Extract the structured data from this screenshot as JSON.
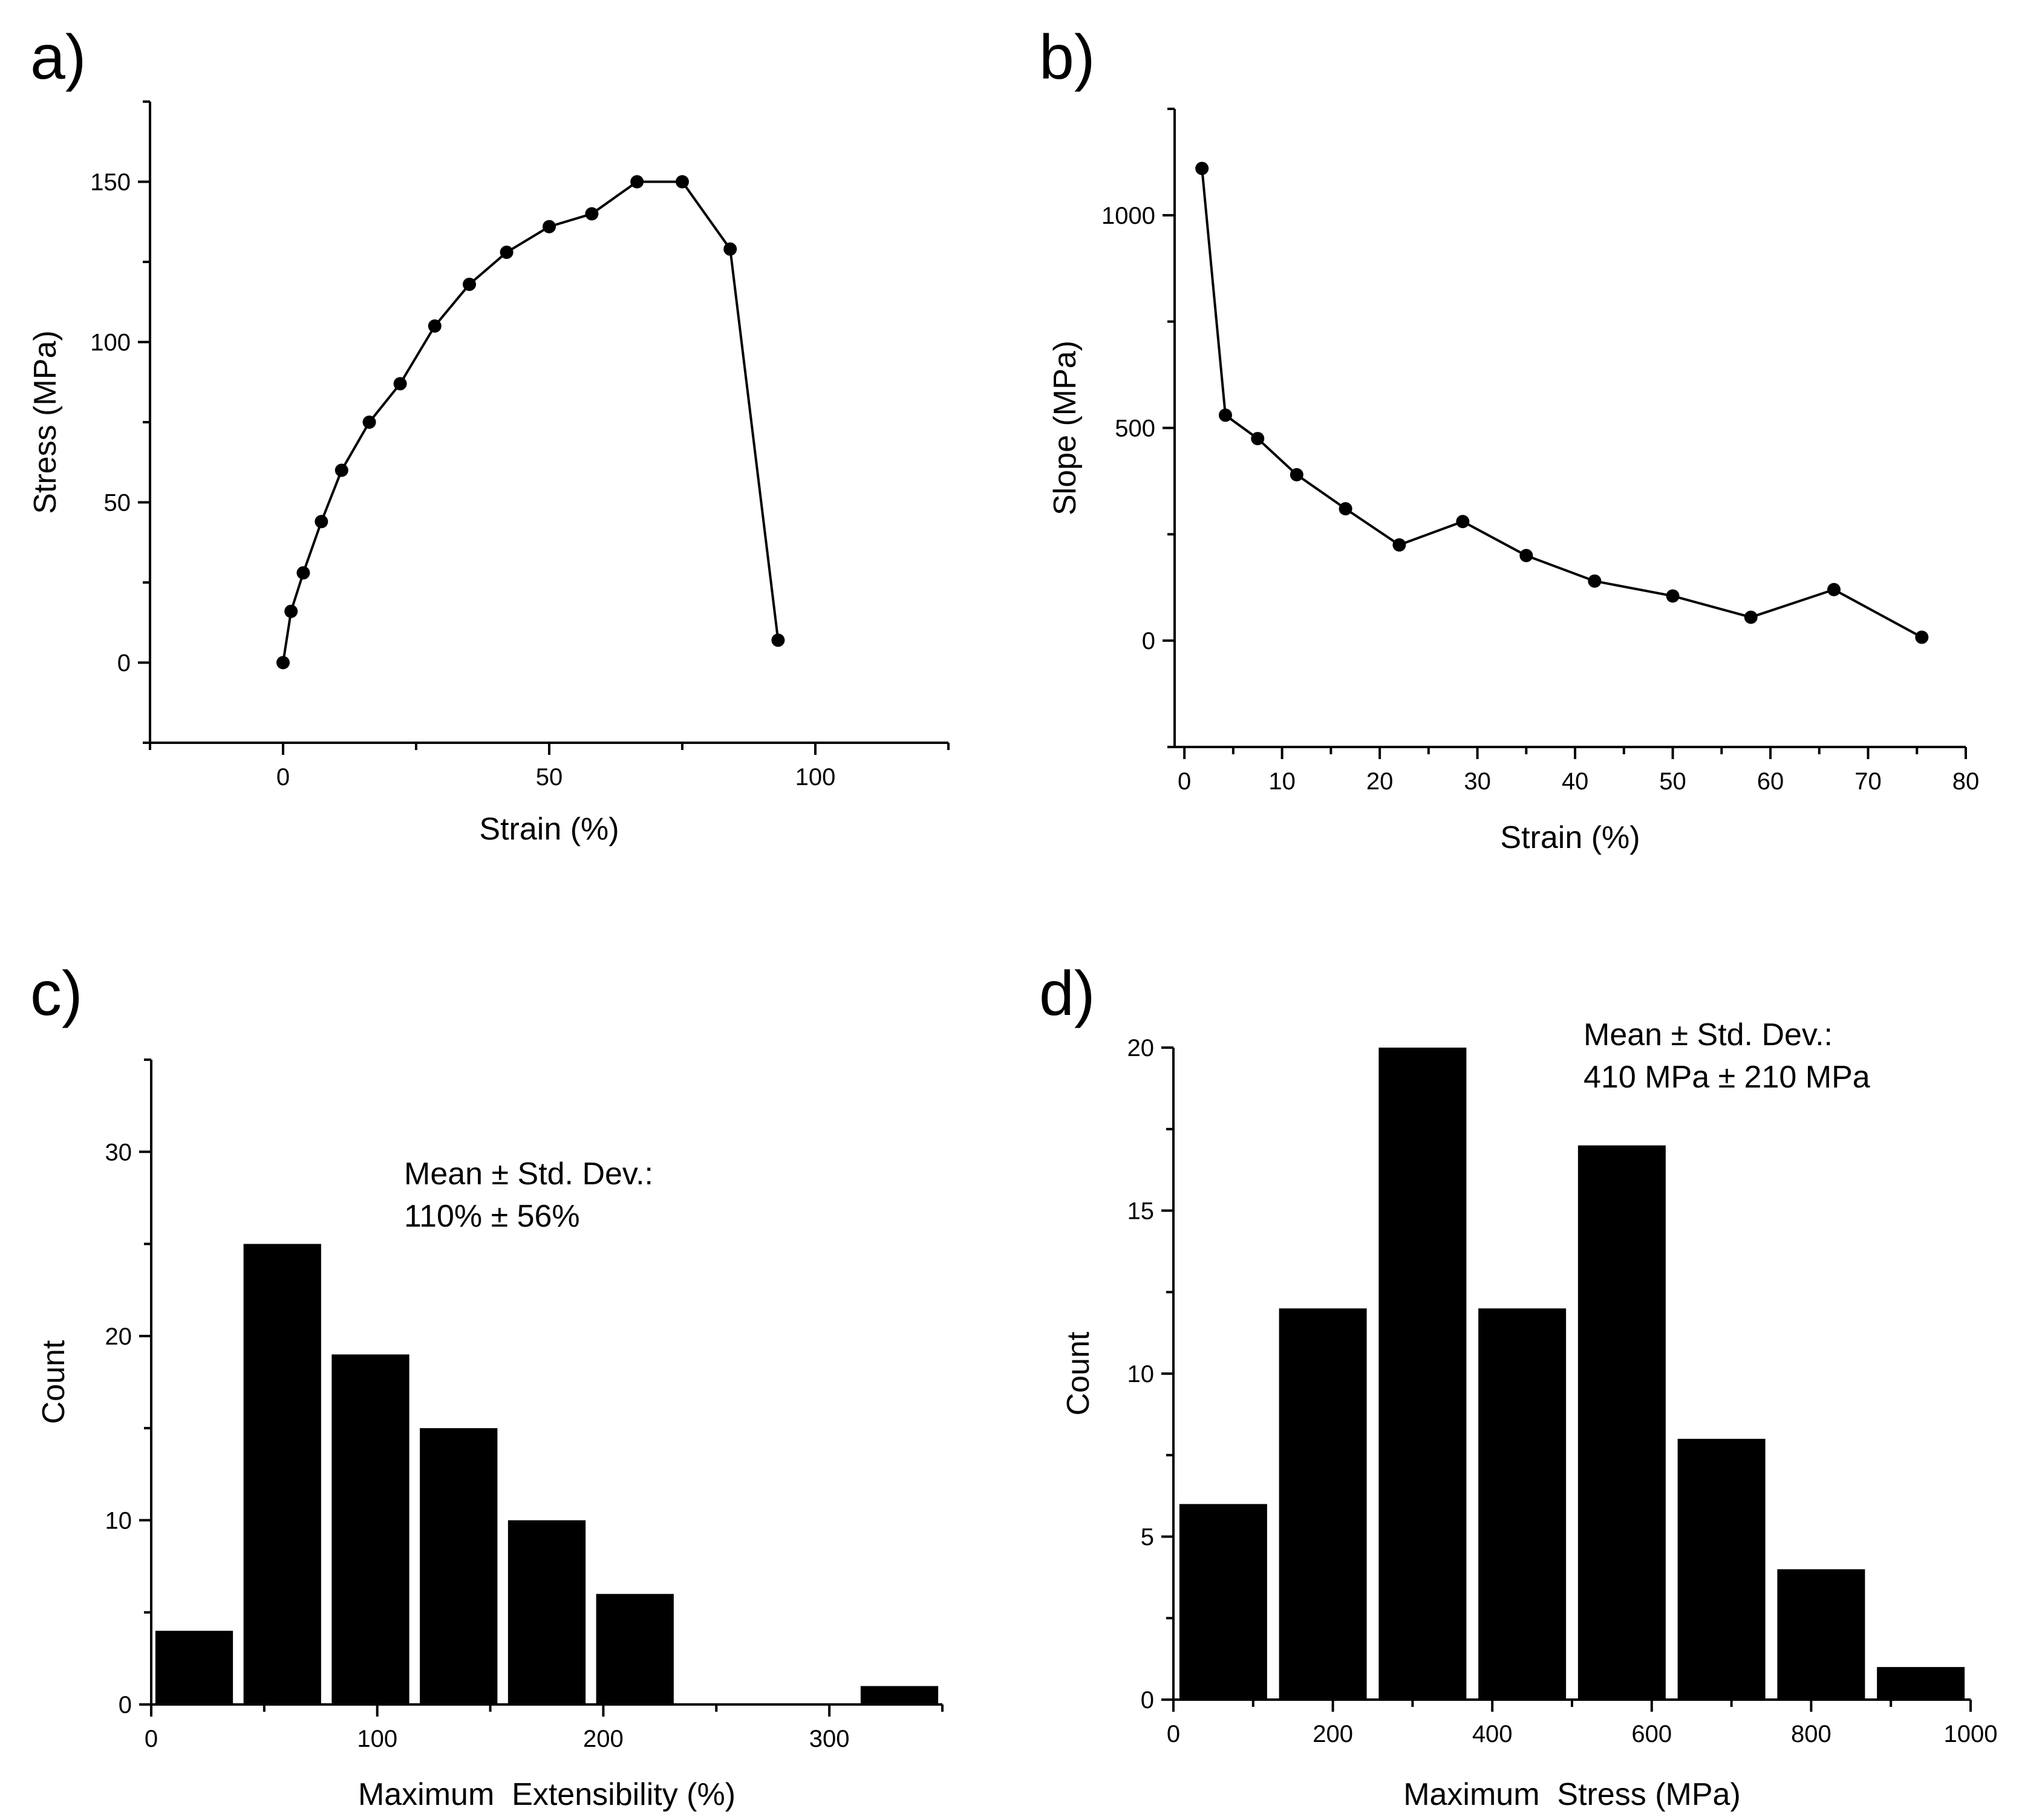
{
  "chart_data": [
    {
      "panel_label": "a)",
      "type": "line",
      "xlabel": "Strain (%)",
      "ylabel": "Stress (MPa)",
      "xlim": [
        -25,
        125
      ],
      "ylim": [
        -25,
        175
      ],
      "xticks": [
        0,
        50,
        100
      ],
      "yticks": [
        0,
        50,
        100,
        150
      ],
      "grid": false,
      "x": [
        0,
        1.5,
        3.8,
        7.2,
        11,
        16.2,
        22,
        28.5,
        35,
        42,
        50,
        58,
        66.5,
        75,
        84,
        93
      ],
      "y": [
        0,
        16,
        28,
        44,
        60,
        75,
        87,
        105,
        118,
        128,
        136,
        140,
        150,
        150,
        129,
        7
      ]
    },
    {
      "panel_label": "b)",
      "type": "line",
      "xlabel": "Strain (%)",
      "ylabel": "Slope (MPa)",
      "xlim": [
        -1,
        80
      ],
      "ylim": [
        -250,
        1250
      ],
      "xticks": [
        0,
        10,
        20,
        30,
        40,
        50,
        60,
        70,
        80
      ],
      "yticks": [
        0,
        500,
        1000
      ],
      "grid": false,
      "x": [
        1.8,
        4.2,
        7.5,
        11.5,
        16.5,
        22,
        28.5,
        35,
        42,
        50,
        58,
        66.5,
        75.5
      ],
      "y": [
        1110,
        530,
        475,
        390,
        310,
        225,
        280,
        200,
        140,
        105,
        55,
        120,
        8
      ]
    },
    {
      "panel_label": "c)",
      "type": "bar",
      "xlabel": "Maximum  Extensibility (%)",
      "ylabel": "Count",
      "xlim": [
        0,
        350
      ],
      "ylim": [
        0,
        35
      ],
      "xticks": [
        0,
        100,
        200,
        300
      ],
      "yticks": [
        0,
        10,
        20,
        30
      ],
      "grid": false,
      "bin_width": 39,
      "x": [
        19,
        58,
        97,
        136,
        175,
        214,
        253,
        292,
        331
      ],
      "values": [
        4,
        25,
        19,
        15,
        10,
        6,
        0,
        0,
        1
      ],
      "annotation": [
        "Mean ± Std. Dev.:",
        "110% ± 56%"
      ]
    },
    {
      "panel_label": "d)",
      "type": "bar",
      "xlabel": "Maximum  Stress (MPa)",
      "ylabel": "Count",
      "xlim": [
        0,
        1000
      ],
      "ylim": [
        0,
        20
      ],
      "xticks": [
        0,
        200,
        400,
        600,
        800,
        1000
      ],
      "yticks": [
        0,
        5,
        10,
        15,
        20
      ],
      "grid": false,
      "bin_width": 125,
      "x": [
        62.5,
        187.5,
        312.5,
        437.5,
        562.5,
        687.5,
        812.5,
        937.5
      ],
      "values": [
        6,
        12,
        20,
        12,
        17,
        8,
        4,
        1
      ],
      "annotation": [
        "Mean ± Std. Dev.:",
        "410 MPa ± 210 MPa"
      ]
    }
  ]
}
